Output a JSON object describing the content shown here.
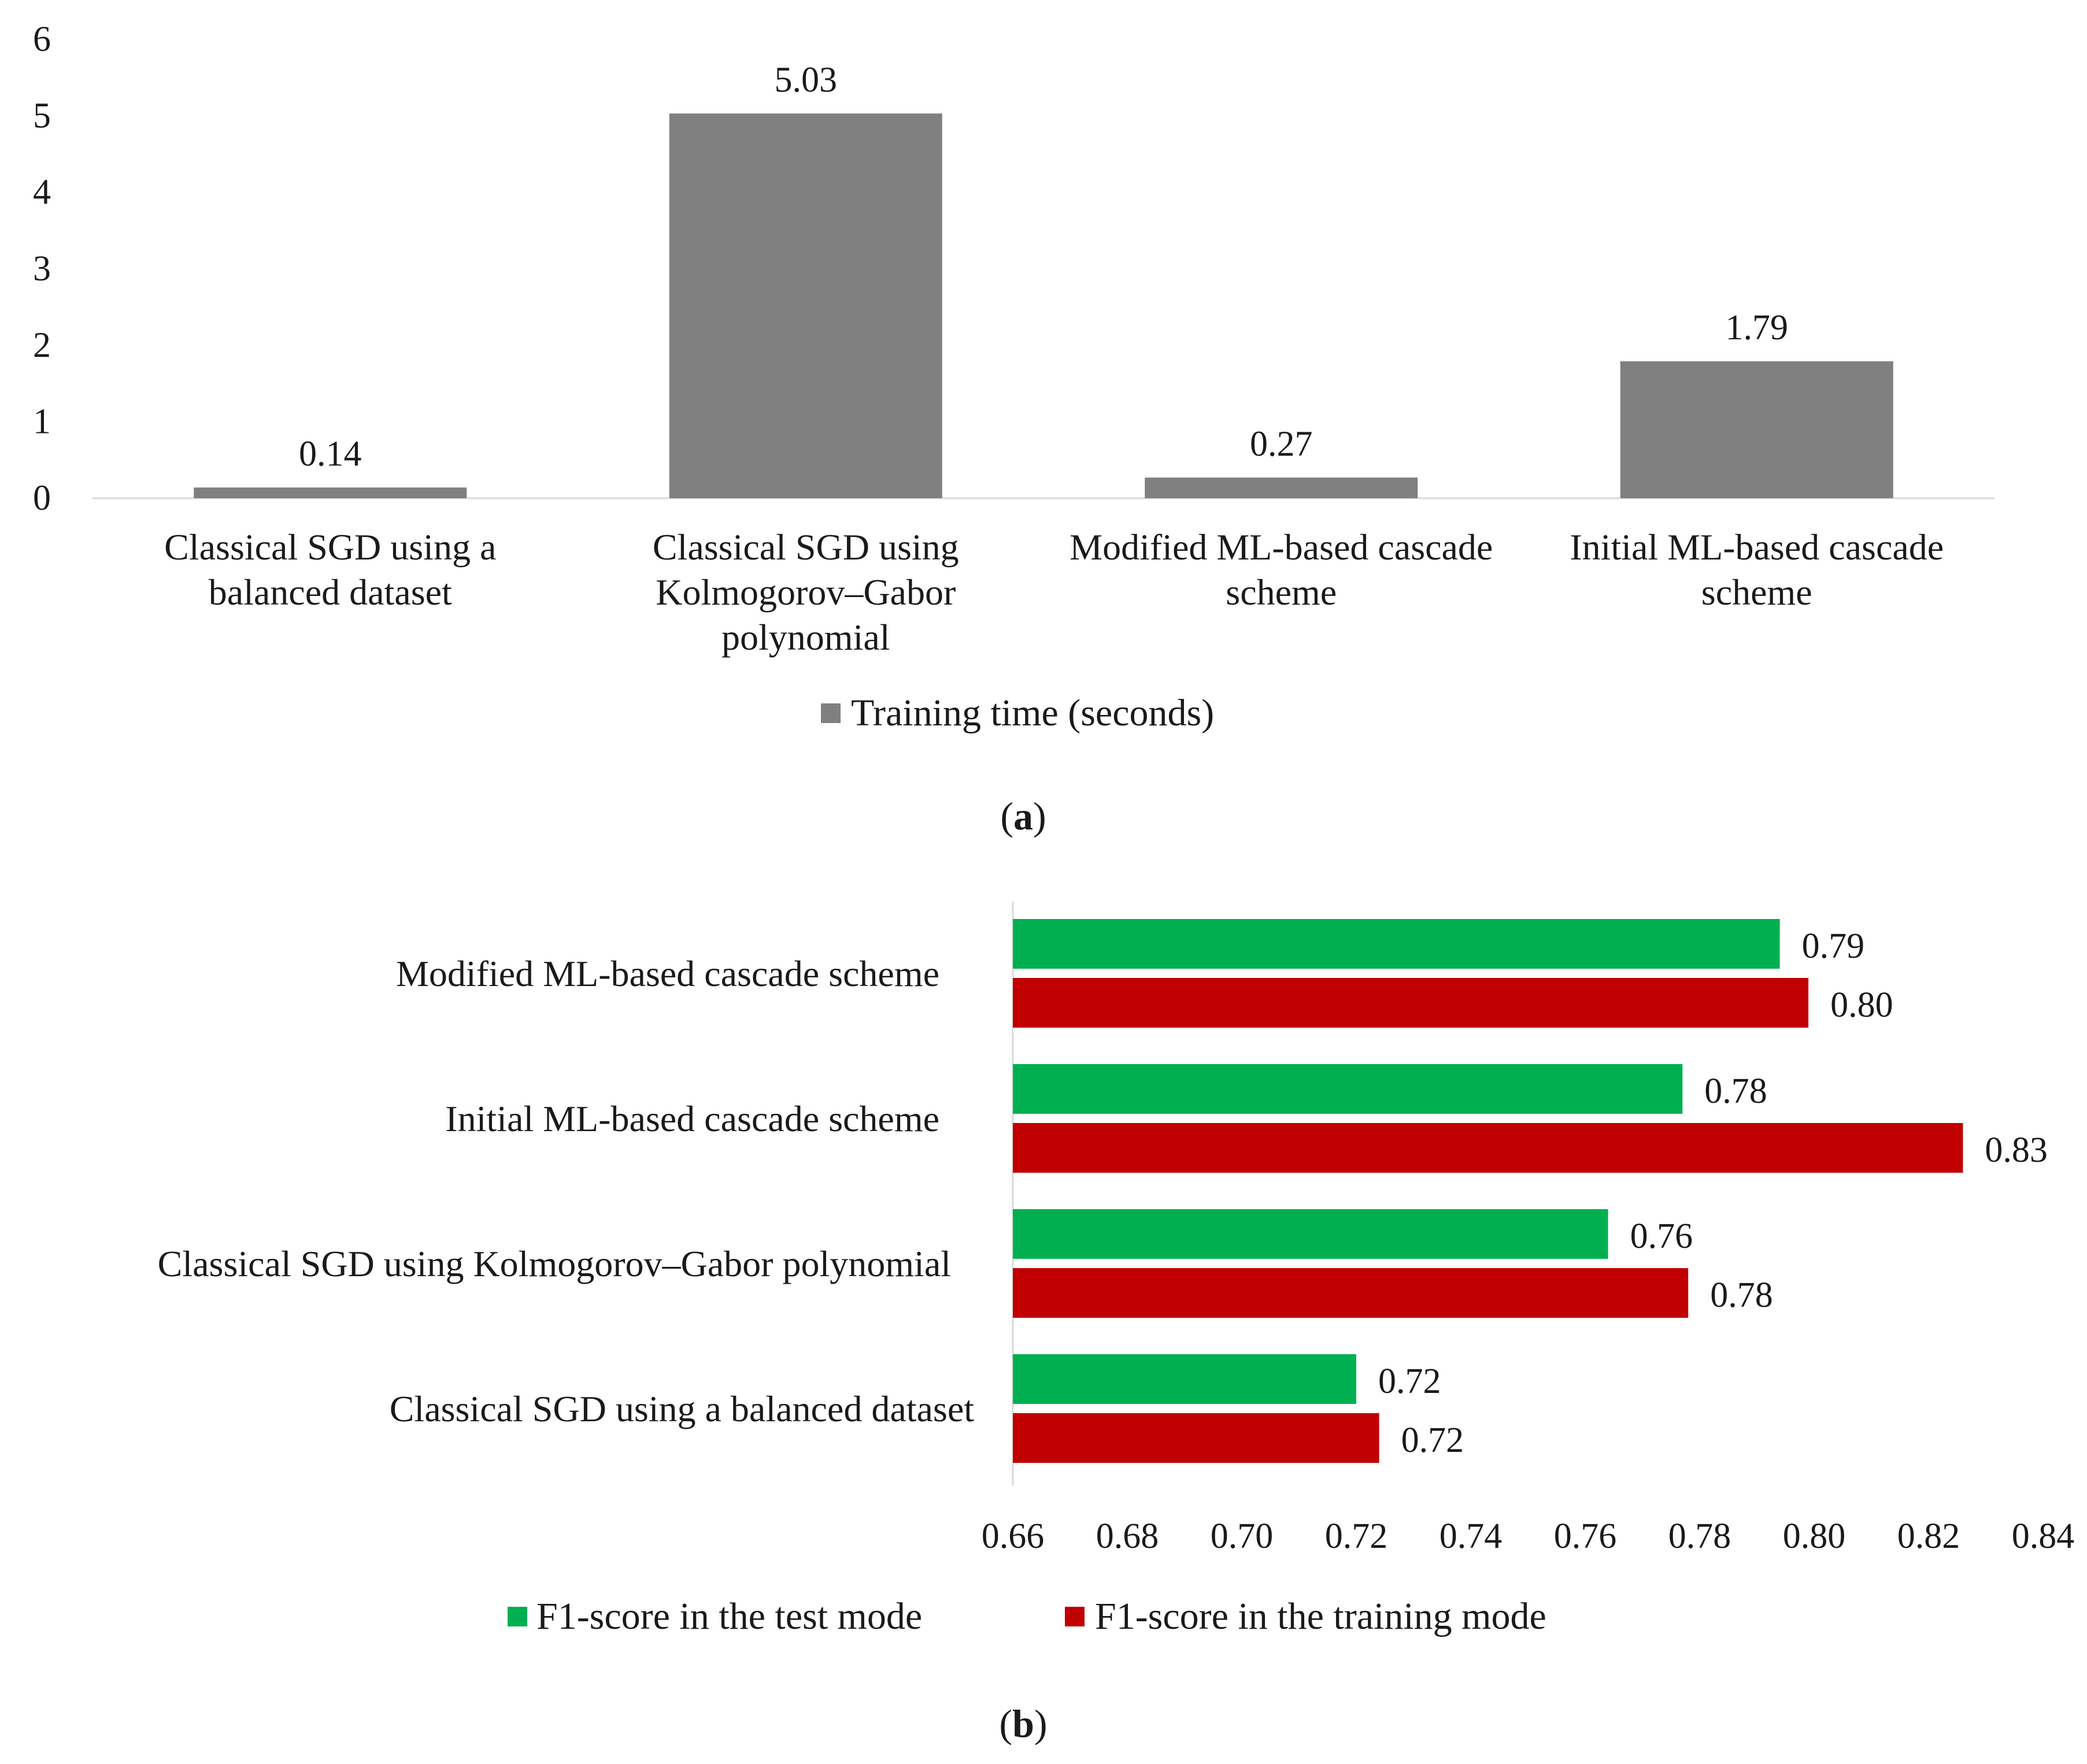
{
  "chart_data": [
    {
      "type": "bar",
      "panel_label": "a",
      "categories": [
        [
          "Classical SGD using a",
          "balanced dataset"
        ],
        [
          "Classical SGD using",
          "Kolmogorov–Gabor",
          "polynomial"
        ],
        [
          "Modified ML-based cascade",
          "scheme"
        ],
        [
          "Initial ML-based cascade",
          "scheme"
        ]
      ],
      "series": [
        {
          "name": "Training time (seconds)",
          "color": "#808080",
          "values": [
            0.14,
            5.03,
            0.27,
            1.79
          ]
        }
      ],
      "data_labels": [
        "0.14",
        "5.03",
        "0.27",
        "1.79"
      ],
      "y_ticks": [
        "0",
        "1",
        "2",
        "3",
        "4",
        "5",
        "6"
      ],
      "ylim": [
        0,
        6
      ],
      "grid": false,
      "legend_position": "bottom"
    },
    {
      "type": "bar",
      "orientation": "horizontal",
      "panel_label": "b",
      "categories": [
        "Modified ML-based cascade scheme",
        "Initial ML-based cascade scheme",
        "Classical SGD using Kolmogorov–Gabor polynomial",
        "Classical SGD using a balanced dataset"
      ],
      "series": [
        {
          "name": "F1-score in the test mode",
          "color": "#00b050",
          "values": [
            0.794,
            0.777,
            0.764,
            0.72
          ],
          "data_labels": [
            "0.79",
            "0.78",
            "0.76",
            "0.72"
          ]
        },
        {
          "name": "F1-score in the training mode",
          "color": "#c00000",
          "values": [
            0.799,
            0.826,
            0.778,
            0.724
          ],
          "data_labels": [
            "0.80",
            "0.83",
            "0.78",
            "0.72"
          ]
        }
      ],
      "x_ticks": [
        "0.66",
        "0.68",
        "0.70",
        "0.72",
        "0.74",
        "0.76",
        "0.78",
        "0.80",
        "0.82",
        "0.84"
      ],
      "xlim": [
        0.66,
        0.84
      ],
      "grid": false,
      "legend_position": "bottom"
    }
  ]
}
